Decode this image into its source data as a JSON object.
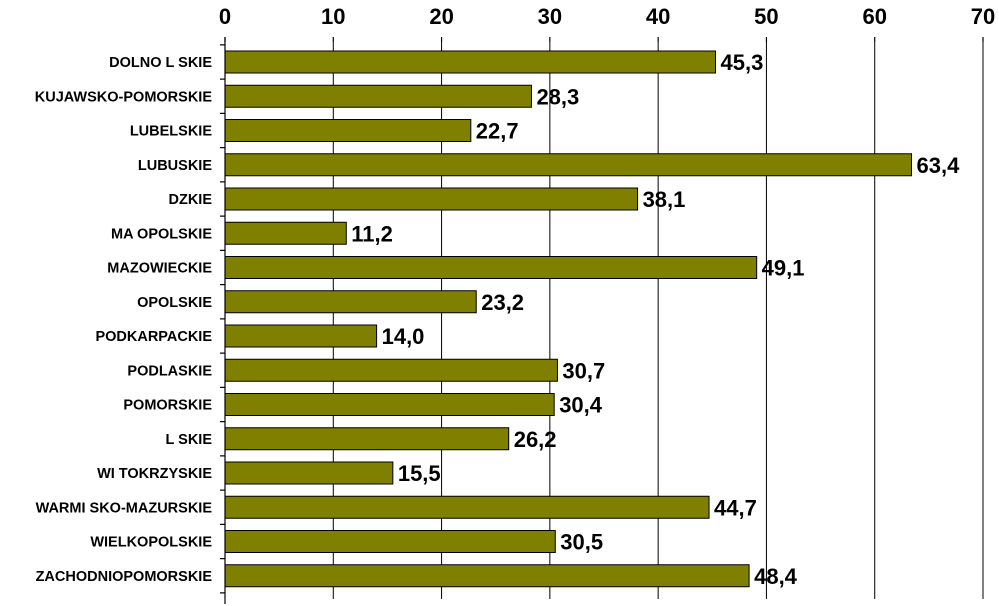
{
  "chart_data": {
    "type": "bar",
    "orientation": "horizontal",
    "categories": [
      "DOLNO L SKIE",
      "KUJAWSKO-POMORSKIE",
      "LUBELSKIE",
      "LUBUSKIE",
      "DZKIE",
      "MA OPOLSKIE",
      "MAZOWIECKIE",
      "OPOLSKIE",
      "PODKARPACKIE",
      "PODLASKIE",
      "POMORSKIE",
      "L SKIE",
      "WI TOKRZYSKIE",
      "WARMI SKO-MAZURSKIE",
      "WIELKOPOLSKIE",
      "ZACHODNIOPOMORSKIE"
    ],
    "values": [
      45.3,
      28.3,
      22.7,
      63.4,
      38.1,
      11.2,
      49.1,
      23.2,
      14.0,
      30.7,
      30.4,
      26.2,
      15.5,
      44.7,
      30.5,
      48.4
    ],
    "value_labels": [
      "45,3",
      "28,3",
      "22,7",
      "63,4",
      "38,1",
      "11,2",
      "49,1",
      "23,2",
      "14,0",
      "30,7",
      "30,4",
      "26,2",
      "15,5",
      "44,7",
      "30,5",
      "48,4"
    ],
    "xlim": [
      0,
      70
    ],
    "xticks": [
      0,
      10,
      20,
      30,
      40,
      50,
      60,
      70
    ],
    "xtick_position": "top",
    "grid": true,
    "title": "",
    "xlabel": "",
    "ylabel": "",
    "bar_color": "#808000"
  }
}
